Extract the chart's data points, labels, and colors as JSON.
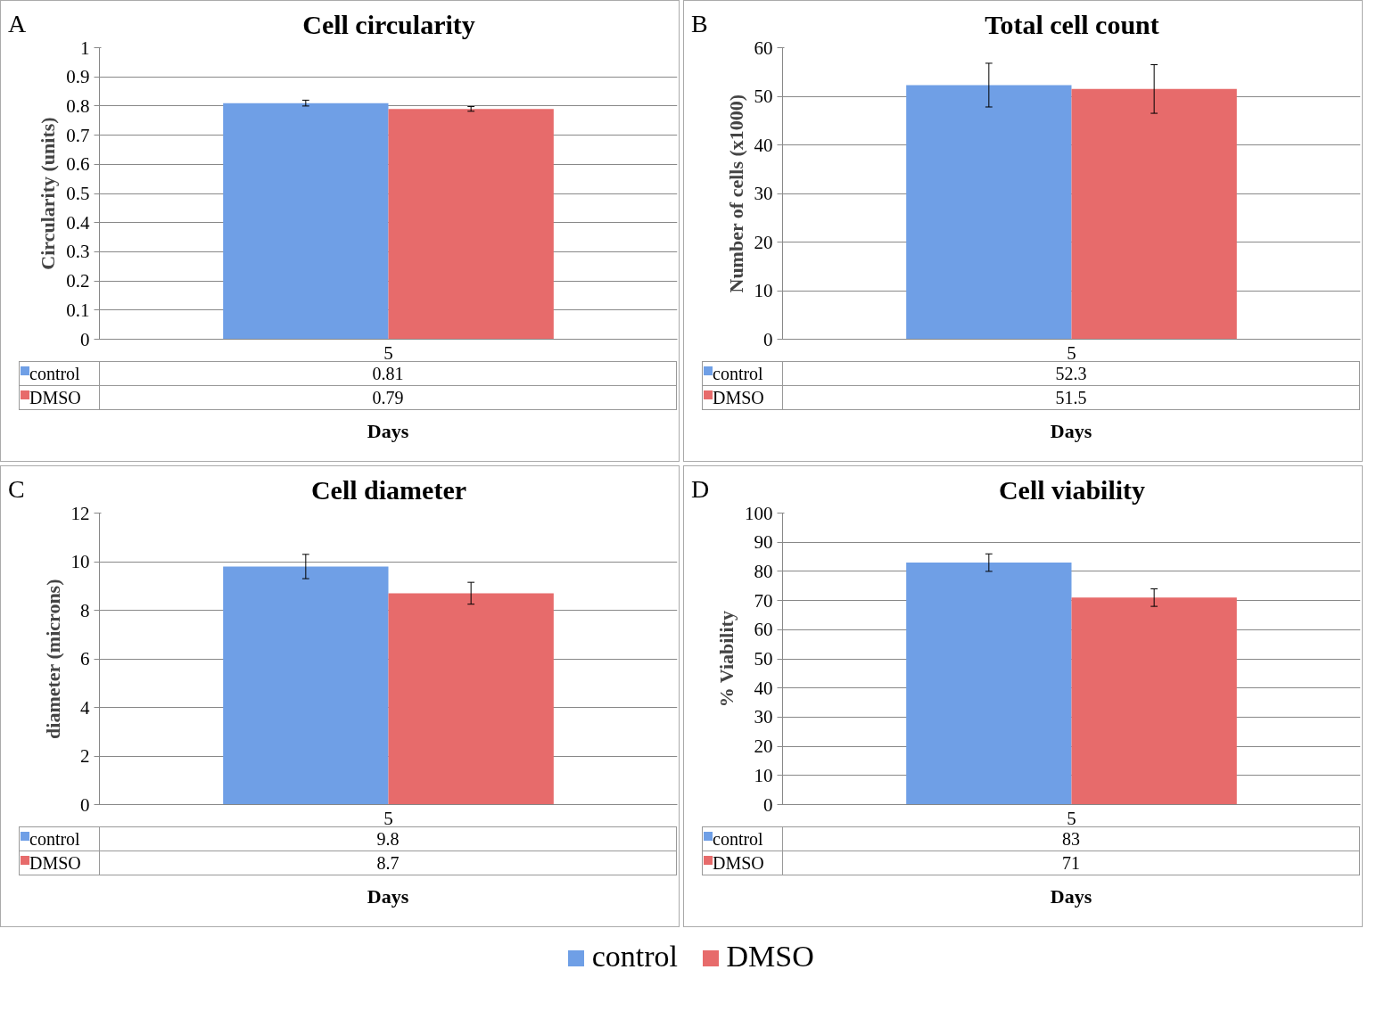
{
  "chart_data": [
    {
      "type": "bar",
      "title": "Cell circularity",
      "ylabel": "Circularity (units)",
      "xlabel": "Days",
      "annotations": [
        "A"
      ],
      "categories": [
        "5"
      ],
      "ylim": [
        0,
        1
      ],
      "yticks": [
        0,
        0.1,
        0.2,
        0.3,
        0.4,
        0.5,
        0.6,
        0.7,
        0.8,
        0.9,
        1
      ],
      "grid": "y",
      "data_labels": true,
      "legend": "bottom",
      "series": [
        {
          "name": "control",
          "color": "#6f9fe6",
          "values": [
            0.81
          ],
          "errors": [
            0.01
          ]
        },
        {
          "name": "DMSO",
          "color": "#e76b6b",
          "values": [
            0.79
          ],
          "errors": [
            0.008
          ]
        }
      ]
    },
    {
      "type": "bar",
      "title": "Total cell count",
      "ylabel": "Number of cells (x1000)",
      "xlabel": "Days",
      "annotations": [
        "B"
      ],
      "categories": [
        "5"
      ],
      "ylim": [
        0,
        60
      ],
      "yticks": [
        0,
        10,
        20,
        30,
        40,
        50,
        60
      ],
      "grid": "y",
      "data_labels": true,
      "legend": "bottom left",
      "series": [
        {
          "name": "control",
          "color": "#6f9fe6",
          "values": [
            52.3
          ],
          "errors": [
            4.5
          ]
        },
        {
          "name": "DMSO",
          "color": "#e76b6b",
          "values": [
            51.5
          ],
          "errors": [
            5
          ]
        }
      ]
    },
    {
      "type": "bar",
      "title": "Cell diameter",
      "ylabel": "diameter (microns)",
      "xlabel": "Days",
      "annotations": [
        "C"
      ],
      "categories": [
        "5"
      ],
      "ylim": [
        0,
        12
      ],
      "yticks": [
        0,
        2,
        4,
        6,
        8,
        10,
        12
      ],
      "grid": "y",
      "data_labels": true,
      "legend": "bottom left",
      "series": [
        {
          "name": "control",
          "color": "#6f9fe6",
          "values": [
            9.8
          ],
          "errors": [
            0.5
          ]
        },
        {
          "name": "DMSO",
          "color": "#e76b6b",
          "values": [
            8.7
          ],
          "errors": [
            0.45
          ]
        }
      ]
    },
    {
      "type": "bar",
      "title": "Cell viability",
      "ylabel": "% Viability",
      "xlabel": "Days",
      "annotations": [
        "D"
      ],
      "categories": [
        "5"
      ],
      "ylim": [
        0,
        100
      ],
      "yticks": [
        0,
        10,
        20,
        30,
        40,
        50,
        60,
        70,
        80,
        90,
        100
      ],
      "grid": "y",
      "data_labels": true,
      "legend": "bottom left",
      "series": [
        {
          "name": "control",
          "color": "#6f9fe6",
          "values": [
            83
          ],
          "errors": [
            3
          ]
        },
        {
          "name": "DMSO",
          "color": "#e76b6b",
          "values": [
            71
          ],
          "errors": [
            3
          ]
        }
      ]
    }
  ]
}
